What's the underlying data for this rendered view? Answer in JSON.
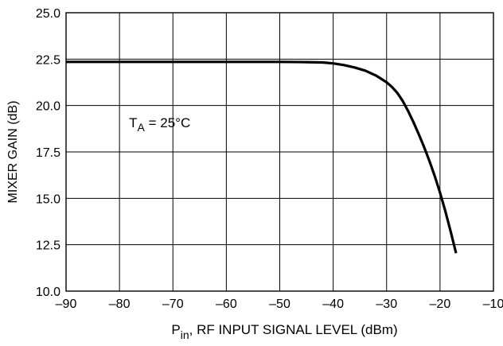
{
  "chart_data": {
    "type": "line",
    "title": "",
    "xlabel": {
      "main": "P",
      "sub": "in",
      "rest": ", RF INPUT SIGNAL LEVEL  (dBm)"
    },
    "ylabel": "MIXER GAIN (dB)",
    "xlim": [
      -90,
      -10
    ],
    "ylim": [
      10.0,
      25.0
    ],
    "x_ticks": [
      -90,
      -80,
      -70,
      -60,
      -50,
      -40,
      -30,
      -20,
      -10
    ],
    "x_tick_labels": [
      "–90",
      "–80",
      "–70",
      "–60",
      "–50",
      "–40",
      "–30",
      "–20",
      "–10"
    ],
    "y_ticks": [
      10.0,
      12.5,
      15.0,
      17.5,
      20.0,
      22.5,
      25.0
    ],
    "y_tick_labels": [
      "10.0",
      "12.5",
      "15.0",
      "17.5",
      "20.0",
      "22.5",
      "25.0"
    ],
    "grid": true,
    "annotation": {
      "main": "T",
      "sub": "A",
      "rest": " = 25°C",
      "x": -80,
      "y": 19.0
    },
    "series": [
      {
        "color": "#000000",
        "x": [
          -90,
          -80,
          -70,
          -60,
          -50,
          -45,
          -42,
          -40,
          -38,
          -36,
          -34,
          -32,
          -30,
          -29,
          -28,
          -27,
          -26,
          -25,
          -24,
          -23,
          -22,
          -21,
          -20,
          -19,
          -18,
          -17
        ],
        "y": [
          22.35,
          22.35,
          22.35,
          22.35,
          22.35,
          22.34,
          22.32,
          22.27,
          22.18,
          22.05,
          21.88,
          21.62,
          21.25,
          21.0,
          20.68,
          20.25,
          19.72,
          19.12,
          18.47,
          17.78,
          17.02,
          16.2,
          15.3,
          14.3,
          13.2,
          12.05
        ]
      }
    ]
  }
}
